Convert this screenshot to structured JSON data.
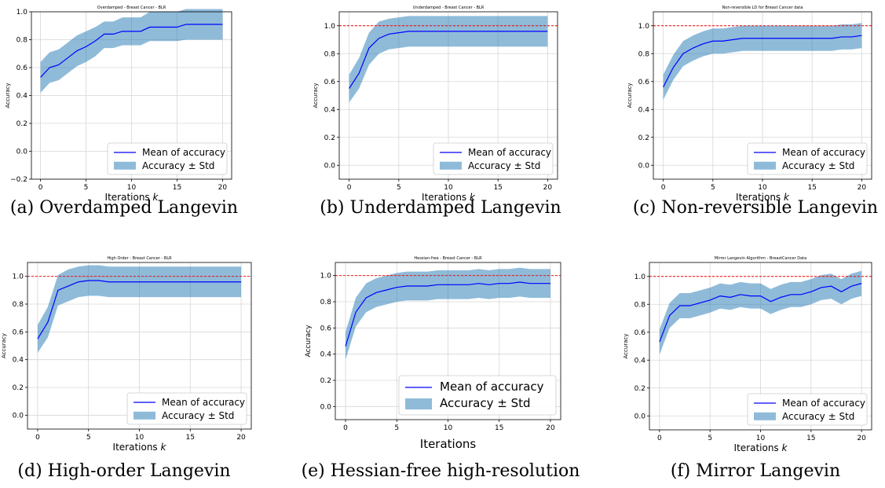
{
  "colors": {
    "mean": "#0000ff",
    "band": "#1f77b4",
    "reference": "#ff0000",
    "grid": "#d6d6d6"
  },
  "chart_data": [
    {
      "type": "line",
      "title": "Overdamped - Breast Cancer - BLR",
      "xlabel": "Iterations k",
      "ylabel": "Accuracy",
      "caption": "(a) Overdamped Langevin",
      "xlim": [
        -1,
        21
      ],
      "ylim": [
        -0.2,
        1.0
      ],
      "xticks": [
        "0",
        "5",
        "10",
        "15",
        "20"
      ],
      "yticks": [
        "−0.2",
        "0.0",
        "0.2",
        "0.4",
        "0.6",
        "0.8",
        "1.0"
      ],
      "legend": {
        "position": "lower right",
        "mean_label": "Mean of accuracy",
        "band_label": "Accuracy ± Std"
      },
      "reference_line": null,
      "x": [
        0,
        1,
        2,
        3,
        4,
        5,
        6,
        7,
        8,
        9,
        10,
        11,
        12,
        13,
        14,
        15,
        16,
        17,
        18,
        19,
        20
      ],
      "mean": [
        0.53,
        0.6,
        0.62,
        0.67,
        0.72,
        0.75,
        0.79,
        0.84,
        0.84,
        0.86,
        0.86,
        0.86,
        0.89,
        0.89,
        0.89,
        0.89,
        0.91,
        0.91,
        0.91,
        0.91,
        0.91
      ],
      "upper": [
        0.64,
        0.71,
        0.73,
        0.78,
        0.83,
        0.86,
        0.89,
        0.93,
        0.93,
        0.96,
        0.96,
        0.96,
        1.0,
        1.0,
        1.0,
        1.0,
        1.02,
        1.02,
        1.02,
        1.02,
        1.02
      ],
      "lower": [
        0.42,
        0.49,
        0.51,
        0.56,
        0.61,
        0.64,
        0.68,
        0.74,
        0.74,
        0.76,
        0.76,
        0.76,
        0.79,
        0.79,
        0.79,
        0.79,
        0.8,
        0.8,
        0.8,
        0.8,
        0.8
      ]
    },
    {
      "type": "line",
      "title": "Underdamped - Breast Cancer - BLR",
      "xlabel": "Iterations k",
      "ylabel": "Accuracy",
      "caption": "(b) Underdamped Langevin",
      "xlim": [
        -1,
        21
      ],
      "ylim": [
        -0.1,
        1.1
      ],
      "xticks": [
        "0",
        "5",
        "10",
        "15",
        "20"
      ],
      "yticks": [
        "0.0",
        "0.2",
        "0.4",
        "0.6",
        "0.8",
        "1.0"
      ],
      "legend": {
        "position": "lower right",
        "mean_label": "Mean of accuracy",
        "band_label": "Accuracy ± Std"
      },
      "reference_line": 1.0,
      "x": [
        0,
        1,
        2,
        3,
        4,
        5,
        6,
        7,
        8,
        9,
        10,
        11,
        12,
        13,
        14,
        15,
        16,
        17,
        18,
        19,
        20
      ],
      "mean": [
        0.55,
        0.66,
        0.84,
        0.91,
        0.94,
        0.95,
        0.96,
        0.96,
        0.96,
        0.96,
        0.96,
        0.96,
        0.96,
        0.96,
        0.96,
        0.96,
        0.96,
        0.96,
        0.96,
        0.96,
        0.96
      ],
      "upper": [
        0.65,
        0.77,
        0.95,
        1.03,
        1.05,
        1.06,
        1.07,
        1.07,
        1.07,
        1.07,
        1.07,
        1.07,
        1.07,
        1.07,
        1.07,
        1.07,
        1.07,
        1.07,
        1.07,
        1.07,
        1.07
      ],
      "lower": [
        0.45,
        0.55,
        0.72,
        0.8,
        0.83,
        0.84,
        0.85,
        0.85,
        0.85,
        0.85,
        0.85,
        0.85,
        0.85,
        0.85,
        0.85,
        0.85,
        0.85,
        0.85,
        0.85,
        0.85,
        0.85
      ]
    },
    {
      "type": "line",
      "title": "Non-reversible LD for Breast Cancer data",
      "xlabel": "Iterations k",
      "ylabel": "Accuracy",
      "caption": "(c) Non-reversible Langevin",
      "xlim": [
        -1,
        21
      ],
      "ylim": [
        -0.1,
        1.1
      ],
      "xticks": [
        "0",
        "5",
        "10",
        "15",
        "20"
      ],
      "yticks": [
        "0.0",
        "0.2",
        "0.4",
        "0.6",
        "0.8",
        "1.0"
      ],
      "legend": {
        "position": "lower right",
        "mean_label": "Mean of accuracy",
        "band_label": "Accuracy ± Std"
      },
      "reference_line": 1.0,
      "x": [
        0,
        1,
        2,
        3,
        4,
        5,
        6,
        7,
        8,
        9,
        10,
        11,
        12,
        13,
        14,
        15,
        16,
        17,
        18,
        19,
        20
      ],
      "mean": [
        0.56,
        0.7,
        0.8,
        0.84,
        0.87,
        0.89,
        0.89,
        0.9,
        0.91,
        0.91,
        0.91,
        0.91,
        0.91,
        0.91,
        0.91,
        0.91,
        0.91,
        0.91,
        0.92,
        0.92,
        0.93
      ],
      "upper": [
        0.65,
        0.79,
        0.89,
        0.93,
        0.96,
        0.98,
        0.98,
        0.99,
        1.0,
        1.0,
        1.0,
        1.0,
        1.0,
        1.0,
        1.0,
        1.0,
        1.0,
        1.0,
        1.01,
        1.01,
        1.02
      ],
      "lower": [
        0.47,
        0.61,
        0.71,
        0.75,
        0.78,
        0.8,
        0.8,
        0.81,
        0.82,
        0.82,
        0.82,
        0.82,
        0.82,
        0.82,
        0.82,
        0.82,
        0.82,
        0.82,
        0.83,
        0.83,
        0.84
      ]
    },
    {
      "type": "line",
      "title": "High Order - Breast Cancer - BLR",
      "xlabel": "Iterations k",
      "ylabel": "Accuracy",
      "caption": "(d) High-order Langevin",
      "xlim": [
        -1,
        21
      ],
      "ylim": [
        -0.1,
        1.1
      ],
      "xticks": [
        "0",
        "5",
        "10",
        "15",
        "20"
      ],
      "yticks": [
        "0.0",
        "0.2",
        "0.4",
        "0.6",
        "0.8",
        "1.0"
      ],
      "legend": {
        "position": "lower right",
        "mean_label": "Mean of accuracy",
        "band_label": "Accuracy ± Std"
      },
      "reference_line": 1.0,
      "x": [
        0,
        1,
        2,
        3,
        4,
        5,
        6,
        7,
        8,
        9,
        10,
        11,
        12,
        13,
        14,
        15,
        16,
        17,
        18,
        19,
        20
      ],
      "mean": [
        0.55,
        0.67,
        0.9,
        0.93,
        0.96,
        0.97,
        0.97,
        0.96,
        0.96,
        0.96,
        0.96,
        0.96,
        0.96,
        0.96,
        0.96,
        0.96,
        0.96,
        0.96,
        0.96,
        0.96,
        0.96
      ],
      "upper": [
        0.65,
        0.78,
        1.01,
        1.05,
        1.07,
        1.08,
        1.08,
        1.07,
        1.07,
        1.07,
        1.07,
        1.07,
        1.07,
        1.07,
        1.07,
        1.07,
        1.07,
        1.07,
        1.07,
        1.07,
        1.07
      ],
      "lower": [
        0.45,
        0.56,
        0.79,
        0.82,
        0.85,
        0.86,
        0.86,
        0.85,
        0.85,
        0.85,
        0.85,
        0.85,
        0.85,
        0.85,
        0.85,
        0.85,
        0.85,
        0.85,
        0.85,
        0.85,
        0.85
      ]
    },
    {
      "type": "line",
      "title": "Hessian-free - Breast Cancer - BLR",
      "xlabel": "Iterations",
      "ylabel": "Accuracy",
      "caption": "(e) Hessian-free high-resolution",
      "large_text": true,
      "xlim": [
        -1,
        21
      ],
      "ylim": [
        -0.1,
        1.1
      ],
      "xticks": [
        "0",
        "5",
        "10",
        "15",
        "20"
      ],
      "yticks": [
        "0.0",
        "0.2",
        "0.4",
        "0.6",
        "0.8",
        "1.0"
      ],
      "legend": {
        "position": "lower right",
        "mean_label": "Mean of accuracy",
        "band_label": "Accuracy ± Std"
      },
      "reference_line": 1.0,
      "x": [
        0,
        1,
        2,
        3,
        4,
        5,
        6,
        7,
        8,
        9,
        10,
        11,
        12,
        13,
        14,
        15,
        16,
        17,
        18,
        19,
        20
      ],
      "mean": [
        0.46,
        0.72,
        0.83,
        0.87,
        0.89,
        0.91,
        0.92,
        0.92,
        0.92,
        0.93,
        0.93,
        0.93,
        0.93,
        0.94,
        0.93,
        0.94,
        0.94,
        0.95,
        0.94,
        0.94,
        0.94
      ],
      "upper": [
        0.57,
        0.83,
        0.94,
        0.98,
        1.0,
        1.02,
        1.03,
        1.03,
        1.03,
        1.04,
        1.04,
        1.04,
        1.04,
        1.05,
        1.04,
        1.05,
        1.05,
        1.06,
        1.05,
        1.05,
        1.05
      ],
      "lower": [
        0.36,
        0.61,
        0.72,
        0.76,
        0.78,
        0.8,
        0.81,
        0.81,
        0.81,
        0.82,
        0.82,
        0.82,
        0.82,
        0.83,
        0.82,
        0.83,
        0.83,
        0.84,
        0.83,
        0.83,
        0.83
      ]
    },
    {
      "type": "line",
      "title": "Mirror Langevin Algorithm - BreastCancer Data",
      "xlabel": "Iterations k",
      "ylabel": "Accuracy",
      "caption": "(f) Mirror Langevin",
      "xlim": [
        -1,
        21
      ],
      "ylim": [
        -0.1,
        1.1
      ],
      "xticks": [
        "0",
        "5",
        "10",
        "15",
        "20"
      ],
      "yticks": [
        "0.0",
        "0.2",
        "0.4",
        "0.6",
        "0.8",
        "1.0"
      ],
      "legend": {
        "position": "lower right",
        "mean_label": "Mean of accuracy",
        "band_label": "Accuracy ± Std"
      },
      "reference_line": 1.0,
      "x": [
        0,
        1,
        2,
        3,
        4,
        5,
        6,
        7,
        8,
        9,
        10,
        11,
        12,
        13,
        14,
        15,
        16,
        17,
        18,
        19,
        20
      ],
      "mean": [
        0.53,
        0.72,
        0.79,
        0.79,
        0.81,
        0.83,
        0.86,
        0.85,
        0.87,
        0.86,
        0.86,
        0.82,
        0.85,
        0.87,
        0.87,
        0.89,
        0.92,
        0.93,
        0.89,
        0.93,
        0.95
      ],
      "upper": [
        0.62,
        0.81,
        0.88,
        0.88,
        0.9,
        0.92,
        0.95,
        0.94,
        0.96,
        0.95,
        0.95,
        0.91,
        0.94,
        0.96,
        0.96,
        0.98,
        1.01,
        1.02,
        0.98,
        1.02,
        1.04
      ],
      "lower": [
        0.44,
        0.63,
        0.7,
        0.7,
        0.72,
        0.74,
        0.77,
        0.76,
        0.78,
        0.77,
        0.77,
        0.73,
        0.76,
        0.78,
        0.78,
        0.8,
        0.83,
        0.84,
        0.8,
        0.84,
        0.86
      ]
    }
  ]
}
